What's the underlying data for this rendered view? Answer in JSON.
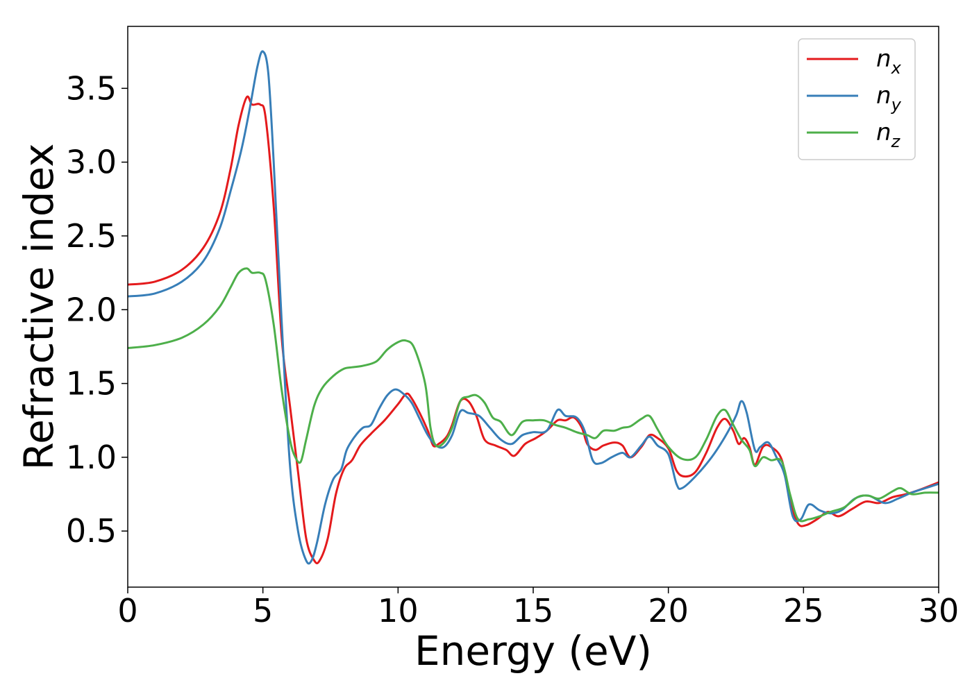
{
  "chart_data": {
    "type": "line",
    "title": "",
    "xlabel": "Energy (eV)",
    "ylabel": "Refractive index",
    "xlim": [
      0,
      30
    ],
    "ylim": [
      0.12,
      3.92
    ],
    "xticks": [
      0,
      5,
      10,
      15,
      20,
      25,
      30
    ],
    "yticks": [
      0.5,
      1.0,
      1.5,
      2.0,
      2.5,
      3.0,
      3.5
    ],
    "xtick_labels": [
      "0",
      "5",
      "10",
      "15",
      "20",
      "25",
      "30"
    ],
    "ytick_labels": [
      "0.5",
      "1.0",
      "1.5",
      "2.0",
      "2.5",
      "3.0",
      "3.5"
    ],
    "grid": false,
    "legend_position": "top-right",
    "series": [
      {
        "name": "n_x",
        "legend_base": "n",
        "legend_sub": "x",
        "color": "#e41a1c",
        "points": [
          [
            0,
            2.17
          ],
          [
            1,
            2.19
          ],
          [
            2,
            2.27
          ],
          [
            2.8,
            2.42
          ],
          [
            3.4,
            2.65
          ],
          [
            3.8,
            2.95
          ],
          [
            4.1,
            3.25
          ],
          [
            4.4,
            3.44
          ],
          [
            4.6,
            3.39
          ],
          [
            4.9,
            3.39
          ],
          [
            5.1,
            3.3
          ],
          [
            5.4,
            2.7
          ],
          [
            5.7,
            1.8
          ],
          [
            6.0,
            1.35
          ],
          [
            6.3,
            0.9
          ],
          [
            6.6,
            0.45
          ],
          [
            6.9,
            0.3
          ],
          [
            7.1,
            0.3
          ],
          [
            7.4,
            0.45
          ],
          [
            7.7,
            0.75
          ],
          [
            8.0,
            0.92
          ],
          [
            8.3,
            0.98
          ],
          [
            8.6,
            1.08
          ],
          [
            9.0,
            1.16
          ],
          [
            9.5,
            1.25
          ],
          [
            10.0,
            1.36
          ],
          [
            10.3,
            1.43
          ],
          [
            10.5,
            1.4
          ],
          [
            10.8,
            1.3
          ],
          [
            11.1,
            1.18
          ],
          [
            11.3,
            1.08
          ],
          [
            11.5,
            1.09
          ],
          [
            11.8,
            1.14
          ],
          [
            12.0,
            1.22
          ],
          [
            12.3,
            1.38
          ],
          [
            12.6,
            1.38
          ],
          [
            12.9,
            1.28
          ],
          [
            13.2,
            1.12
          ],
          [
            13.6,
            1.08
          ],
          [
            14.0,
            1.05
          ],
          [
            14.3,
            1.01
          ],
          [
            14.7,
            1.09
          ],
          [
            15.1,
            1.13
          ],
          [
            15.5,
            1.18
          ],
          [
            15.9,
            1.25
          ],
          [
            16.2,
            1.25
          ],
          [
            16.5,
            1.27
          ],
          [
            16.8,
            1.2
          ],
          [
            17.0,
            1.09
          ],
          [
            17.3,
            1.05
          ],
          [
            17.6,
            1.08
          ],
          [
            18.0,
            1.1
          ],
          [
            18.3,
            1.08
          ],
          [
            18.6,
            1.0
          ],
          [
            19.0,
            1.07
          ],
          [
            19.3,
            1.15
          ],
          [
            19.6,
            1.13
          ],
          [
            20.0,
            1.06
          ],
          [
            20.3,
            0.91
          ],
          [
            20.6,
            0.87
          ],
          [
            21.0,
            0.9
          ],
          [
            21.4,
            1.03
          ],
          [
            21.8,
            1.2
          ],
          [
            22.1,
            1.26
          ],
          [
            22.4,
            1.18
          ],
          [
            22.6,
            1.09
          ],
          [
            22.8,
            1.13
          ],
          [
            23.0,
            1.07
          ],
          [
            23.2,
            0.95
          ],
          [
            23.5,
            1.07
          ],
          [
            23.8,
            1.07
          ],
          [
            24.2,
            0.98
          ],
          [
            24.5,
            0.7
          ],
          [
            24.8,
            0.55
          ],
          [
            25.1,
            0.54
          ],
          [
            25.5,
            0.58
          ],
          [
            25.9,
            0.63
          ],
          [
            26.3,
            0.6
          ],
          [
            26.8,
            0.65
          ],
          [
            27.3,
            0.7
          ],
          [
            27.8,
            0.69
          ],
          [
            28.3,
            0.73
          ],
          [
            28.8,
            0.75
          ],
          [
            29.3,
            0.78
          ],
          [
            30,
            0.83
          ]
        ]
      },
      {
        "name": "n_y",
        "legend_base": "n",
        "legend_sub": "y",
        "color": "#377eb8",
        "points": [
          [
            0,
            2.09
          ],
          [
            1,
            2.11
          ],
          [
            2,
            2.19
          ],
          [
            2.8,
            2.33
          ],
          [
            3.4,
            2.55
          ],
          [
            3.8,
            2.8
          ],
          [
            4.2,
            3.08
          ],
          [
            4.5,
            3.35
          ],
          [
            4.8,
            3.65
          ],
          [
            5.0,
            3.75
          ],
          [
            5.2,
            3.6
          ],
          [
            5.4,
            3.0
          ],
          [
            5.7,
            1.9
          ],
          [
            6.0,
            0.95
          ],
          [
            6.3,
            0.5
          ],
          [
            6.6,
            0.3
          ],
          [
            6.8,
            0.3
          ],
          [
            7.0,
            0.42
          ],
          [
            7.3,
            0.68
          ],
          [
            7.6,
            0.85
          ],
          [
            7.9,
            0.92
          ],
          [
            8.1,
            1.05
          ],
          [
            8.4,
            1.14
          ],
          [
            8.7,
            1.2
          ],
          [
            9.0,
            1.22
          ],
          [
            9.3,
            1.33
          ],
          [
            9.6,
            1.42
          ],
          [
            9.9,
            1.46
          ],
          [
            10.2,
            1.43
          ],
          [
            10.5,
            1.37
          ],
          [
            10.8,
            1.26
          ],
          [
            11.1,
            1.15
          ],
          [
            11.4,
            1.08
          ],
          [
            11.7,
            1.07
          ],
          [
            12.0,
            1.15
          ],
          [
            12.3,
            1.31
          ],
          [
            12.6,
            1.3
          ],
          [
            13.0,
            1.28
          ],
          [
            13.4,
            1.2
          ],
          [
            13.8,
            1.12
          ],
          [
            14.2,
            1.09
          ],
          [
            14.6,
            1.15
          ],
          [
            15.0,
            1.17
          ],
          [
            15.5,
            1.18
          ],
          [
            15.9,
            1.32
          ],
          [
            16.2,
            1.28
          ],
          [
            16.6,
            1.27
          ],
          [
            16.9,
            1.18
          ],
          [
            17.2,
            0.98
          ],
          [
            17.5,
            0.96
          ],
          [
            17.9,
            1.0
          ],
          [
            18.3,
            1.03
          ],
          [
            18.6,
            1.0
          ],
          [
            19.0,
            1.08
          ],
          [
            19.3,
            1.14
          ],
          [
            19.6,
            1.08
          ],
          [
            20.0,
            1.02
          ],
          [
            20.3,
            0.82
          ],
          [
            20.5,
            0.79
          ],
          [
            21.0,
            0.87
          ],
          [
            21.6,
            1.0
          ],
          [
            22.1,
            1.14
          ],
          [
            22.5,
            1.28
          ],
          [
            22.7,
            1.38
          ],
          [
            22.9,
            1.3
          ],
          [
            23.2,
            1.05
          ],
          [
            23.4,
            1.07
          ],
          [
            23.7,
            1.1
          ],
          [
            24.0,
            1.0
          ],
          [
            24.3,
            0.88
          ],
          [
            24.6,
            0.6
          ],
          [
            24.9,
            0.58
          ],
          [
            25.2,
            0.68
          ],
          [
            25.6,
            0.64
          ],
          [
            26.0,
            0.62
          ],
          [
            26.4,
            0.64
          ],
          [
            26.9,
            0.72
          ],
          [
            27.4,
            0.74
          ],
          [
            28.0,
            0.69
          ],
          [
            28.5,
            0.72
          ],
          [
            29.0,
            0.76
          ],
          [
            29.5,
            0.79
          ],
          [
            30,
            0.82
          ]
        ]
      },
      {
        "name": "n_z",
        "legend_base": "n",
        "legend_sub": "z",
        "color": "#4daf4a",
        "points": [
          [
            0,
            1.74
          ],
          [
            1,
            1.76
          ],
          [
            2,
            1.81
          ],
          [
            2.8,
            1.9
          ],
          [
            3.4,
            2.02
          ],
          [
            3.8,
            2.15
          ],
          [
            4.1,
            2.25
          ],
          [
            4.4,
            2.28
          ],
          [
            4.6,
            2.25
          ],
          [
            4.9,
            2.25
          ],
          [
            5.1,
            2.2
          ],
          [
            5.4,
            1.9
          ],
          [
            5.7,
            1.45
          ],
          [
            6.0,
            1.12
          ],
          [
            6.2,
            1.0
          ],
          [
            6.4,
            0.97
          ],
          [
            6.6,
            1.12
          ],
          [
            6.9,
            1.35
          ],
          [
            7.2,
            1.47
          ],
          [
            7.6,
            1.55
          ],
          [
            8.0,
            1.6
          ],
          [
            8.3,
            1.61
          ],
          [
            8.7,
            1.62
          ],
          [
            9.2,
            1.65
          ],
          [
            9.6,
            1.73
          ],
          [
            10.0,
            1.78
          ],
          [
            10.3,
            1.79
          ],
          [
            10.6,
            1.74
          ],
          [
            11.0,
            1.5
          ],
          [
            11.2,
            1.2
          ],
          [
            11.4,
            1.08
          ],
          [
            11.7,
            1.1
          ],
          [
            12.0,
            1.2
          ],
          [
            12.3,
            1.38
          ],
          [
            12.6,
            1.41
          ],
          [
            12.9,
            1.42
          ],
          [
            13.2,
            1.37
          ],
          [
            13.5,
            1.27
          ],
          [
            13.8,
            1.24
          ],
          [
            14.2,
            1.15
          ],
          [
            14.6,
            1.24
          ],
          [
            15.0,
            1.25
          ],
          [
            15.4,
            1.25
          ],
          [
            15.8,
            1.22
          ],
          [
            16.2,
            1.2
          ],
          [
            16.6,
            1.17
          ],
          [
            17.0,
            1.15
          ],
          [
            17.3,
            1.13
          ],
          [
            17.6,
            1.18
          ],
          [
            18.0,
            1.18
          ],
          [
            18.3,
            1.2
          ],
          [
            18.6,
            1.21
          ],
          [
            19.0,
            1.26
          ],
          [
            19.3,
            1.28
          ],
          [
            19.6,
            1.19
          ],
          [
            20.0,
            1.07
          ],
          [
            20.5,
            0.99
          ],
          [
            21.0,
            1.0
          ],
          [
            21.4,
            1.12
          ],
          [
            21.8,
            1.28
          ],
          [
            22.1,
            1.32
          ],
          [
            22.4,
            1.22
          ],
          [
            22.7,
            1.12
          ],
          [
            23.0,
            1.05
          ],
          [
            23.2,
            0.94
          ],
          [
            23.5,
            1.0
          ],
          [
            23.8,
            0.98
          ],
          [
            24.2,
            0.97
          ],
          [
            24.5,
            0.75
          ],
          [
            24.8,
            0.58
          ],
          [
            25.2,
            0.58
          ],
          [
            25.6,
            0.6
          ],
          [
            26.0,
            0.63
          ],
          [
            26.5,
            0.66
          ],
          [
            27.0,
            0.73
          ],
          [
            27.4,
            0.74
          ],
          [
            27.8,
            0.72
          ],
          [
            28.3,
            0.77
          ],
          [
            28.6,
            0.79
          ],
          [
            29.0,
            0.75
          ],
          [
            29.5,
            0.76
          ],
          [
            30,
            0.76
          ]
        ]
      }
    ]
  }
}
